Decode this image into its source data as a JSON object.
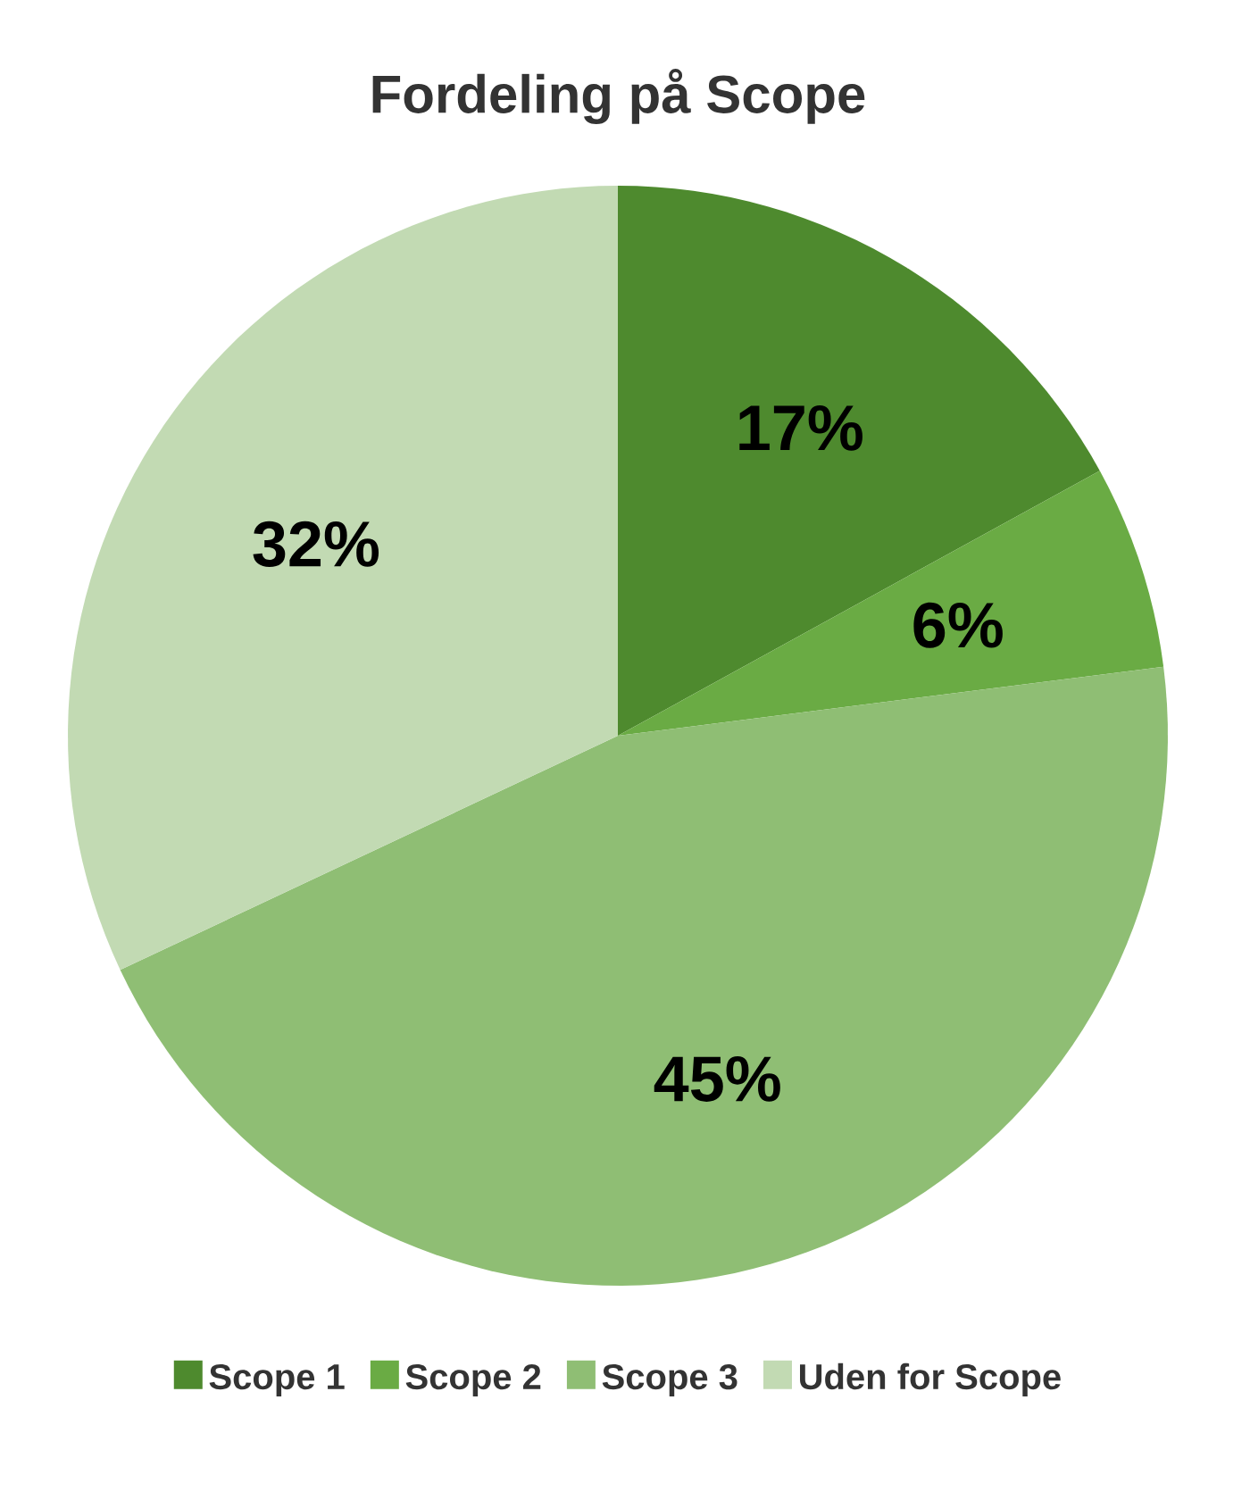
{
  "chart_data": {
    "type": "pie",
    "title": "Fordeling på Scope",
    "categories": [
      "Scope 1",
      "Scope 2",
      "Scope 3",
      "Uden for Scope"
    ],
    "values": [
      17,
      6,
      45,
      32
    ],
    "colors": [
      "#4e8a2e",
      "#6aab44",
      "#8fbe74",
      "#c2dab3"
    ],
    "value_labels": [
      "17%",
      "6%",
      "45%",
      "32%"
    ],
    "legend": "bottom"
  }
}
